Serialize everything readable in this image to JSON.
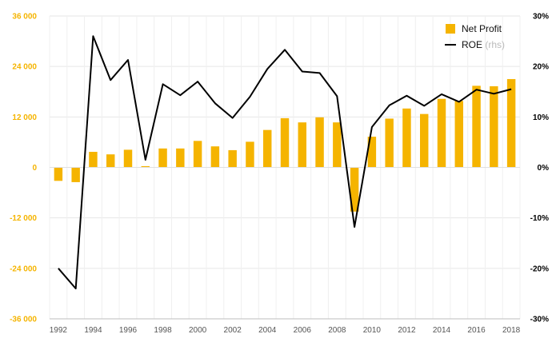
{
  "chart_data": {
    "type": "bar",
    "x": [
      1992,
      1993,
      1994,
      1995,
      1996,
      1997,
      1998,
      1999,
      2000,
      2001,
      2002,
      2003,
      2004,
      2005,
      2006,
      2007,
      2008,
      2009,
      2010,
      2011,
      2012,
      2013,
      2014,
      2015,
      2016,
      2017,
      2018
    ],
    "x_tick_labels": [
      "1992",
      "1994",
      "1996",
      "1998",
      "2000",
      "2002",
      "2004",
      "2006",
      "2008",
      "2010",
      "2012",
      "2014",
      "2016",
      "2018"
    ],
    "series": [
      {
        "name": "Net Profit",
        "type": "bar",
        "axis": "left",
        "color": "#f5b400",
        "values": [
          -3200,
          -3500,
          3700,
          3100,
          4200,
          300,
          4500,
          4500,
          6300,
          5000,
          4100,
          6100,
          8900,
          11700,
          10700,
          11900,
          10700,
          -10500,
          7300,
          11600,
          14000,
          12700,
          16300,
          15800,
          19400,
          19300,
          21000
        ]
      },
      {
        "name": "ROE",
        "name_suffix": "(rhs)",
        "type": "line",
        "axis": "right",
        "color": "#000000",
        "values": [
          -20.0,
          -24.0,
          26.0,
          17.3,
          21.3,
          1.5,
          16.5,
          14.3,
          17.0,
          12.7,
          9.8,
          14.0,
          19.5,
          23.3,
          19.0,
          18.7,
          14.1,
          -11.8,
          8.0,
          12.3,
          14.2,
          12.2,
          14.5,
          13.0,
          15.4,
          14.6,
          15.5
        ]
      }
    ],
    "ylim_left": [
      -36000,
      36000
    ],
    "yticks_left": [
      -36000,
      -24000,
      -12000,
      0,
      12000,
      24000,
      36000
    ],
    "ytick_labels_left": [
      "-36 000",
      "-24 000",
      "-12 000",
      "0",
      "12 000",
      "24 000",
      "36 000"
    ],
    "ylim_right": [
      -30,
      30
    ],
    "yticks_right": [
      -30,
      -20,
      -10,
      0,
      10,
      20,
      30
    ],
    "ytick_labels_right": [
      "-30%",
      "-20%",
      "-10%",
      "0%",
      "10%",
      "20%",
      "30%"
    ],
    "grid": true,
    "legend_position": "top-right",
    "title": "",
    "xlabel": "",
    "ylabel": ""
  }
}
